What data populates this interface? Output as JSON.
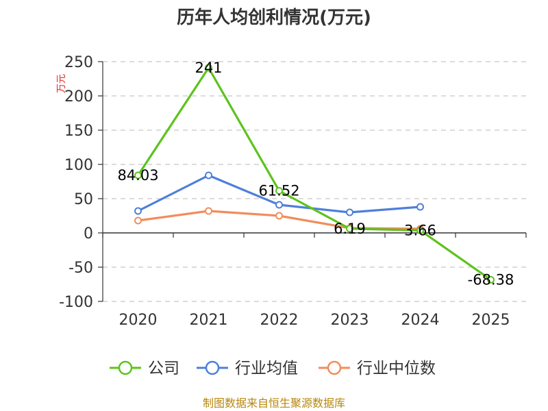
{
  "chart_data": {
    "type": "line",
    "title": "历年人均创利情况(万元)",
    "ylabel": "万元",
    "categories": [
      "2020",
      "2021",
      "2022",
      "2023",
      "2024",
      "2025"
    ],
    "ylim": [
      -100,
      250
    ],
    "yticks": [
      "250",
      "200",
      "150",
      "100",
      "50",
      "0",
      "-50",
      "-100"
    ],
    "grid": true,
    "legend_position": "bottom",
    "series": [
      {
        "name": "公司",
        "color": "#5cc31c",
        "values": [
          84.03,
          241,
          61.52,
          6.19,
          3.66,
          -68.38
        ],
        "labels": [
          "84.03",
          "241",
          "61.52",
          "6.19",
          "3.66",
          "-68.38"
        ]
      },
      {
        "name": "行业均值",
        "color": "#4e7fdb",
        "values": [
          32,
          84,
          41,
          30,
          38,
          null
        ]
      },
      {
        "name": "行业中位数",
        "color": "#f28c5a",
        "values": [
          18,
          32,
          25,
          7,
          6,
          null
        ]
      }
    ],
    "source": "制图数据来自恒生聚源数据库"
  }
}
